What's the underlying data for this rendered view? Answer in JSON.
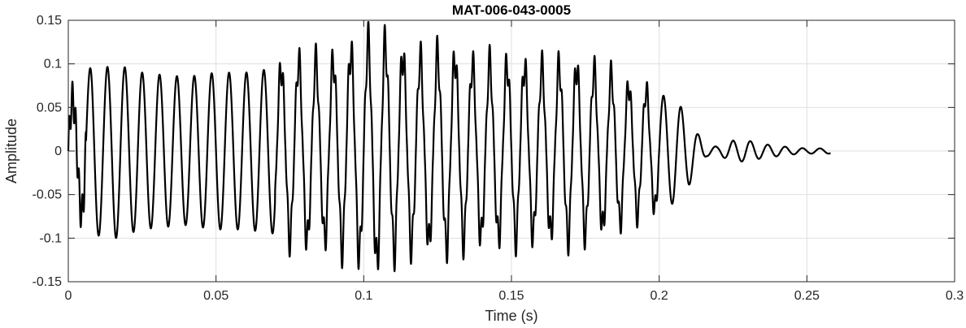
{
  "chart_data": {
    "type": "line",
    "title": "MAT-006-043-0005",
    "xlabel": "Time (s)",
    "ylabel": "Amplitude",
    "xlim": [
      0,
      0.3
    ],
    "ylim": [
      -0.15,
      0.15
    ],
    "grid": true,
    "x_ticks": [
      0,
      0.05,
      0.1,
      0.15,
      0.2,
      0.25,
      0.3
    ],
    "x_tick_labels": [
      "0",
      "0.05",
      "0.1",
      "0.15",
      "0.2",
      "0.25",
      "0.3"
    ],
    "y_ticks": [
      -0.15,
      -0.1,
      -0.05,
      0,
      0.05,
      0.1,
      0.15
    ],
    "y_tick_labels": [
      "-0.15",
      "-0.1",
      "-0.05",
      "0",
      "0.05",
      "0.1",
      "0.15"
    ],
    "line_color": "#000000",
    "series": [
      {
        "x": [
          0.0,
          0.003,
          0.008,
          0.012,
          0.016,
          0.02,
          0.025,
          0.03,
          0.04,
          0.05,
          0.06,
          0.07,
          0.075,
          0.08,
          0.085,
          0.09,
          0.095,
          0.1,
          0.105,
          0.11,
          0.115,
          0.12,
          0.125,
          0.13,
          0.135,
          0.14,
          0.15,
          0.16,
          0.17,
          0.18,
          0.185,
          0.19,
          0.195,
          0.2,
          0.205,
          0.21,
          0.213,
          0.216,
          0.22,
          0.225,
          0.23,
          0.235,
          0.24,
          0.245,
          0.25,
          0.255,
          0.258
        ],
        "amplitude": [
          0.06,
          0.06,
          0.1,
          0.095,
          0.1,
          0.095,
          0.09,
          0.088,
          0.085,
          0.09,
          0.09,
          0.095,
          0.1,
          0.105,
          0.1,
          0.105,
          0.115,
          0.12,
          0.13,
          0.115,
          0.11,
          0.105,
          0.11,
          0.11,
          0.1,
          0.1,
          0.1,
          0.095,
          0.1,
          0.09,
          0.085,
          0.075,
          0.07,
          0.065,
          0.06,
          0.04,
          0.02,
          0.006,
          0.005,
          0.012,
          0.012,
          0.008,
          0.006,
          0.004,
          0.003,
          0.003,
          0.003
        ]
      }
    ]
  }
}
